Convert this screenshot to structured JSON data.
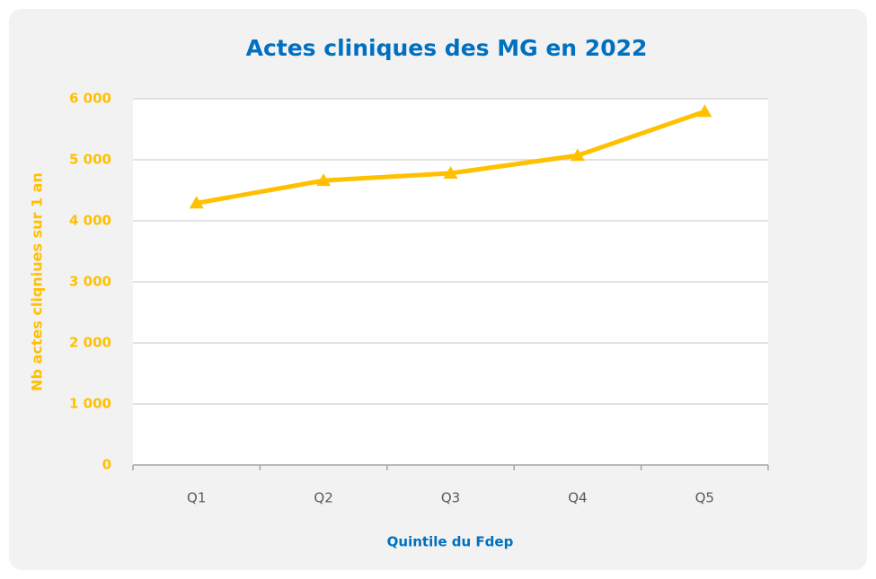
{
  "chart_data": {
    "type": "line",
    "title": "Actes cliniques des MG en 2022",
    "x_label": "Quintile du Fdep",
    "y_label": "Nb actes cliqniues sur 1 an",
    "categories": [
      "Q1",
      "Q2",
      "Q3",
      "Q4",
      "Q5"
    ],
    "series": [
      {
        "name": "Nb actes cliqniues sur 1 an",
        "color": "#ffc000",
        "values": [
          4290,
          4660,
          4780,
          5070,
          5790
        ]
      }
    ],
    "ylim": [
      0,
      6000
    ],
    "yticks": [
      0,
      {
        "value": 1000,
        "label": "1 000"
      },
      {
        "value": 2000,
        "label": "2 000"
      },
      {
        "value": 3000,
        "label": "3 000"
      },
      {
        "value": 4000,
        "label": "4 000"
      },
      {
        "value": 5000,
        "label": "5 000"
      },
      {
        "value": 6000,
        "label": "6 000"
      }
    ],
    "grid": true
  }
}
